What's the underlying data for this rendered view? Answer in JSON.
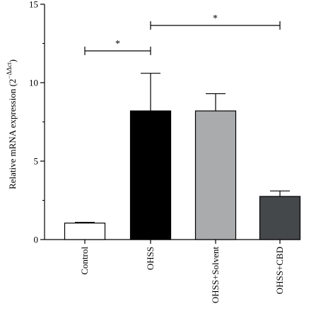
{
  "chart_data": {
    "type": "bar",
    "categories": [
      "Control",
      "OHSS",
      "OHSS+Solvent",
      "OHSS+CBD"
    ],
    "values": [
      1.05,
      8.2,
      8.2,
      2.75
    ],
    "error_upper": [
      1.1,
      10.6,
      9.3,
      3.1
    ],
    "bar_colors": [
      "#ffffff",
      "#000000",
      "#a9abad",
      "#45484b"
    ],
    "ylabel": "Relative mRNA expression (2",
    "ylabel_superscript": "−ΔΔct",
    "ylabel_suffix": ")",
    "ylim": [
      0,
      15
    ],
    "yticks": [
      0,
      5,
      10,
      15
    ],
    "yticks_labels": [
      "0",
      "5",
      "10",
      "15"
    ],
    "grid": false,
    "significance": [
      {
        "from": "Control",
        "to": "OHSS",
        "label": "*"
      },
      {
        "from": "OHSS",
        "to": "OHSS+CBD",
        "label": "*"
      }
    ]
  }
}
